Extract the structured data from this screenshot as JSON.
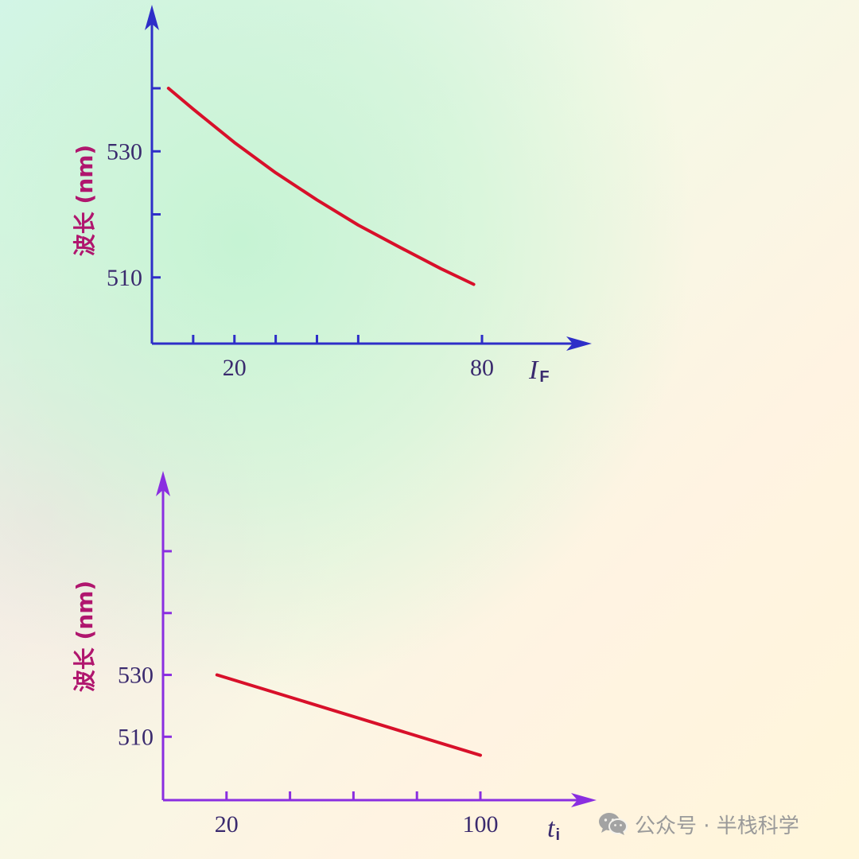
{
  "chart_data": [
    {
      "type": "line",
      "ylabel": "波长 (nm)",
      "x_symbol": "I",
      "x_subscript": "F",
      "x_ticks": [
        10,
        20,
        30,
        40,
        50,
        80
      ],
      "x_tick_labels": [
        {
          "value": 20,
          "label": "20"
        },
        {
          "value": 80,
          "label": "80"
        }
      ],
      "y_ticks": [
        510,
        520,
        530,
        540
      ],
      "y_tick_labels": [
        {
          "value": 530,
          "label": "530"
        },
        {
          "value": 510,
          "label": "510"
        }
      ],
      "xlim": [
        0,
        80
      ],
      "ylim": [
        499.5,
        540
      ],
      "series": [
        {
          "x": [
            4,
            10,
            20,
            30,
            40,
            50,
            60,
            70,
            78
          ],
          "y": [
            540,
            536.7,
            531.4,
            526.6,
            522.3,
            518.3,
            514.8,
            511.4,
            508.9
          ]
        }
      ],
      "color": "#d8102a",
      "axis_color": "#2e2ec8"
    },
    {
      "type": "line",
      "ylabel": "波长 (nm)",
      "x_symbol": "t",
      "x_subscript": "i",
      "x_ticks": [
        20,
        40,
        60,
        80,
        100
      ],
      "x_tick_labels": [
        {
          "value": 20,
          "label": "20"
        },
        {
          "value": 100,
          "label": "100"
        }
      ],
      "y_ticks": [
        510,
        530,
        550,
        570
      ],
      "y_tick_labels": [
        {
          "value": 530,
          "label": "530"
        },
        {
          "value": 510,
          "label": "510"
        }
      ],
      "xlim": [
        0,
        100
      ],
      "ylim": [
        489.5,
        570
      ],
      "series": [
        {
          "x": [
            17,
            100
          ],
          "y": [
            530,
            504
          ]
        }
      ],
      "color": "#d8102a",
      "axis_color": "#8a2ee0"
    }
  ],
  "watermark": {
    "icon": "wechat-icon",
    "text": "公众号 · 半栈科学"
  }
}
